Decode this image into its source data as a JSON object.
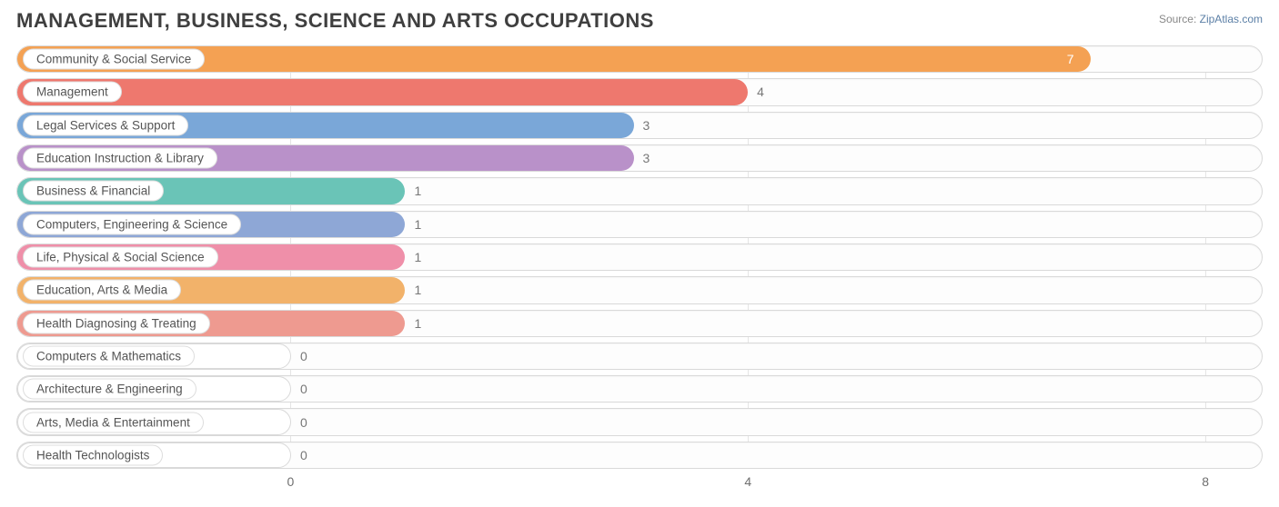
{
  "title": "MANAGEMENT, BUSINESS, SCIENCE AND ARTS OCCUPATIONS",
  "source": {
    "label": "Source:",
    "name": "ZipAtlas.com"
  },
  "chart": {
    "type": "bar-horizontal",
    "background_color": "#ffffff",
    "track_border_color": "#d9d9d9",
    "grid_color": "#e5e5e5",
    "pill_bg": "#ffffff",
    "pill_border": "#dddddd",
    "label_color": "#555555",
    "value_color": "#777777",
    "title_color": "#3f3f3f",
    "title_fontsize": 22,
    "label_fontsize": 13.5,
    "value_fontsize": 14,
    "xlim": [
      -0.5,
      8.5
    ],
    "xticks": [
      0,
      4,
      8
    ],
    "zero_offset_pct": 22,
    "bars": [
      {
        "label": "Community & Social Service",
        "value": 7,
        "color": "#f4a153",
        "value_inside": true
      },
      {
        "label": "Management",
        "value": 4,
        "color": "#ee786e",
        "value_inside": false
      },
      {
        "label": "Legal Services & Support",
        "value": 3,
        "color": "#7aa7d8",
        "value_inside": false
      },
      {
        "label": "Education Instruction & Library",
        "value": 3,
        "color": "#b991c9",
        "value_inside": false
      },
      {
        "label": "Business & Financial",
        "value": 1,
        "color": "#6ac4b7",
        "value_inside": false
      },
      {
        "label": "Computers, Engineering & Science",
        "value": 1,
        "color": "#8ea7d6",
        "value_inside": false
      },
      {
        "label": "Life, Physical & Social Science",
        "value": 1,
        "color": "#ef8fa9",
        "value_inside": false
      },
      {
        "label": "Education, Arts & Media",
        "value": 1,
        "color": "#f2b26a",
        "value_inside": false
      },
      {
        "label": "Health Diagnosing & Treating",
        "value": 1,
        "color": "#ee9a90",
        "value_inside": false
      },
      {
        "label": "Computers & Mathematics",
        "value": 0,
        "color": "#9ab5dc",
        "value_inside": false
      },
      {
        "label": "Architecture & Engineering",
        "value": 0,
        "color": "#c6a4d3",
        "value_inside": false
      },
      {
        "label": "Arts, Media & Entertainment",
        "value": 0,
        "color": "#79c9bd",
        "value_inside": false
      },
      {
        "label": "Health Technologists",
        "value": 0,
        "color": "#ffffff",
        "value_inside": false
      }
    ]
  }
}
